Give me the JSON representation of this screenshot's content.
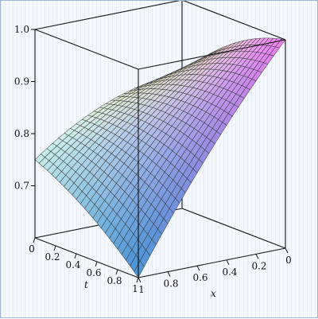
{
  "chart_data": {
    "type": "surface",
    "title": "",
    "xlabel": "x",
    "tlabel": "t",
    "zlabel": "",
    "x_range": [
      0,
      1
    ],
    "t_range": [
      0,
      1
    ],
    "z_range": [
      0.6,
      1.0
    ],
    "x_ticks": [
      "0",
      "0.2",
      "0.4",
      "0.6",
      "0.8",
      "1"
    ],
    "x_tick_values": [
      0,
      0.2,
      0.4,
      0.6,
      0.8,
      1
    ],
    "t_ticks": [
      "0",
      "0.2",
      "0.4",
      "0.6",
      "0.8",
      "1"
    ],
    "t_tick_values": [
      0,
      0.2,
      0.4,
      0.6,
      0.8,
      1
    ],
    "z_ticks": [
      "0.7",
      "0.8",
      "0.9",
      "1.0"
    ],
    "z_tick_values": [
      0.7,
      0.8,
      0.9,
      1.0
    ],
    "grid_rows": 25,
    "grid_cols": 25,
    "corner_values": {
      "x0_t0": 0.86,
      "x1_t0": 0.75,
      "x0_t1": 1.0,
      "x1_t1": 0.6
    },
    "box": true,
    "colors": {
      "magenta": "#f07cf0",
      "blue": "#5a6cf0",
      "cyan": "#4ef3ea",
      "yellow": "#f2f2a0",
      "mesh": "#333333",
      "box": "#111111"
    }
  }
}
